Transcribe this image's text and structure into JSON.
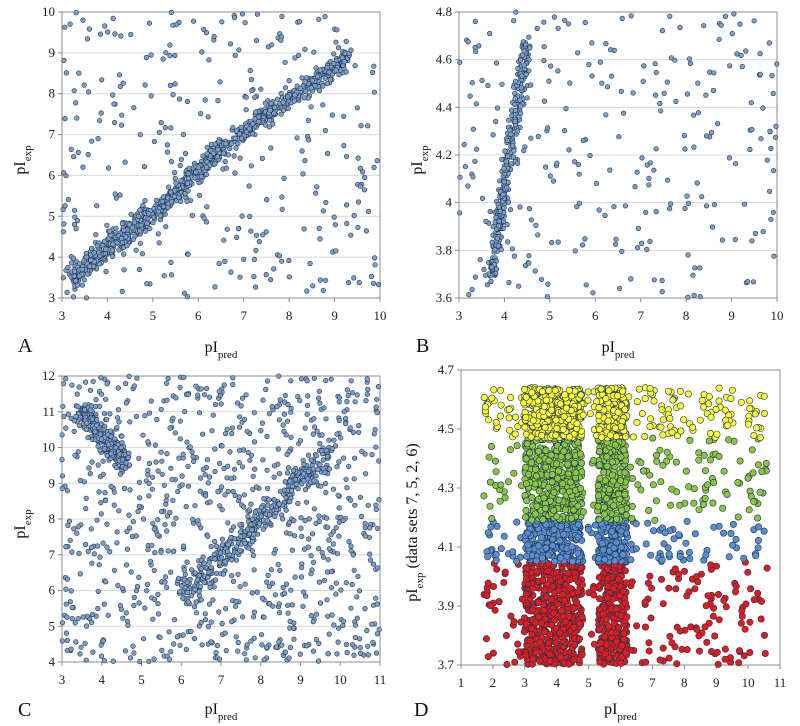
{
  "chart_data": [
    {
      "panel": "A",
      "type": "scatter",
      "xlabel": {
        "main": "pI",
        "sub": "pred"
      },
      "ylabel": {
        "main": "pI",
        "sub": "exp"
      },
      "xlim": [
        3,
        10
      ],
      "ylim": [
        3,
        10
      ],
      "xticks": [
        "3",
        "4",
        "5",
        "6",
        "7",
        "8",
        "9",
        "10"
      ],
      "yticks": [
        "3",
        "4",
        "5",
        "6",
        "7",
        "8",
        "9",
        "10"
      ],
      "grid": "horizontal",
      "marker_color": "#7f9fc7",
      "dense_bands": [
        {
          "x": [
            3.2,
            4.9
          ],
          "y": [
            3.5,
            5.0
          ],
          "spread": 0.15
        },
        {
          "x": [
            5.0,
            6.6
          ],
          "y": [
            5.0,
            6.8
          ],
          "spread": 0.12
        },
        {
          "x": [
            6.8,
            9.3
          ],
          "y": [
            6.9,
            8.9
          ],
          "spread": 0.12
        }
      ],
      "scattered_points_approx": 320
    },
    {
      "panel": "B",
      "type": "scatter",
      "xlabel": {
        "main": "pI",
        "sub": "pred"
      },
      "ylabel": {
        "main": "pI",
        "sub": "exp"
      },
      "xlim": [
        3,
        10
      ],
      "ylim": [
        3.6,
        4.8
      ],
      "xticks": [
        "3",
        "4",
        "5",
        "6",
        "7",
        "8",
        "9",
        "10"
      ],
      "yticks": [
        "3.6",
        "3.8",
        "4",
        "4.2",
        "4.4",
        "4.6",
        "4.8"
      ],
      "grid": "horizontal",
      "marker_color": "#7f9fc7",
      "dense_bands": [
        {
          "x": [
            3.7,
            4.5
          ],
          "y": [
            3.68,
            4.69
          ],
          "spread": 0.12
        }
      ],
      "scattered_points_approx": 260
    },
    {
      "panel": "C",
      "type": "scatter",
      "xlabel": {
        "main": "pI",
        "sub": "pred"
      },
      "ylabel": {
        "main": "pI",
        "sub": "exp"
      },
      "xlim": [
        3,
        11
      ],
      "ylim": [
        4,
        12
      ],
      "xticks": [
        "3",
        "4",
        "5",
        "6",
        "7",
        "8",
        "9",
        "10",
        "11"
      ],
      "yticks": [
        "4",
        "5",
        "6",
        "7",
        "8",
        "9",
        "10",
        "11",
        "12"
      ],
      "grid": "horizontal",
      "marker_color": "#7f9fc7",
      "dense_bands": [
        {
          "x": [
            6.0,
            9.8
          ],
          "y": [
            5.9,
            9.9
          ],
          "spread": 0.2
        },
        {
          "x": [
            3.5,
            4.6
          ],
          "y": [
            11.0,
            9.6
          ],
          "spread": 0.15
        }
      ],
      "scattered_points_approx": 900
    },
    {
      "panel": "D",
      "type": "scatter",
      "xlabel": {
        "main": "pI",
        "sub": "pred"
      },
      "ylabel": {
        "main": "pI",
        "sub": "exp",
        "suffix": " (data sets 7, 5, 2, 6)"
      },
      "xlim": [
        1,
        11
      ],
      "ylim": [
        3.7,
        4.7
      ],
      "xticks": [
        "1",
        "2",
        "3",
        "4",
        "5",
        "6",
        "7",
        "8",
        "9",
        "10",
        "11"
      ],
      "yticks": [
        "3.7",
        "3.9",
        "4.1",
        "4.3",
        "4.5",
        "4.7"
      ],
      "grid": "none",
      "series": [
        {
          "color": "#e41a1c",
          "y_range": [
            3.7,
            4.05
          ],
          "approx_points": 900
        },
        {
          "color": "#5b8ecf",
          "y_range": [
            4.05,
            4.19
          ],
          "approx_points": 450
        },
        {
          "color": "#8cc63f",
          "y_range": [
            4.19,
            4.47
          ],
          "approx_points": 700
        },
        {
          "color": "#ffff33",
          "y_range": [
            4.47,
            4.64
          ],
          "approx_points": 800
        }
      ]
    }
  ]
}
